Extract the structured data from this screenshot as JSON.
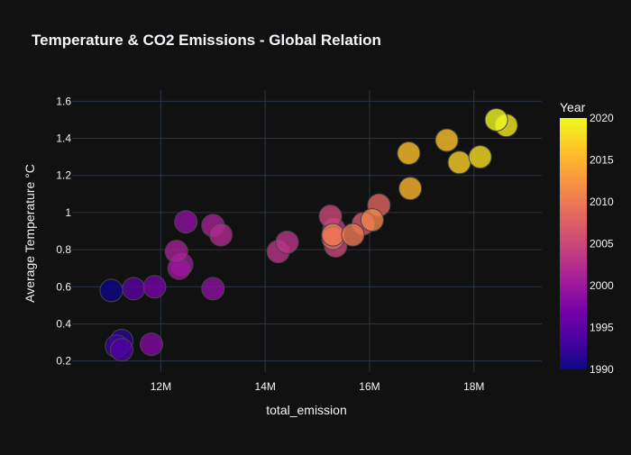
{
  "colors": {
    "background": "#111111",
    "grid": "#283442",
    "text": "#f2f5fa",
    "marker_outline": "#444444",
    "colorscale": [
      "#0d0887",
      "#46039f",
      "#7201a8",
      "#9c179e",
      "#bd3786",
      "#d8576b",
      "#ed7953",
      "#fb9f3a",
      "#fdca26",
      "#f0f921"
    ]
  },
  "chart_data": {
    "type": "scatter",
    "title": "Temperature & CO2 Emissions - Global Relation",
    "xlabel": "total_emission",
    "ylabel": "Average Temperature °C",
    "xlim": [
      10300000,
      19300000
    ],
    "ylim": [
      0.14,
      1.66
    ],
    "grid": true,
    "x_ticks": [
      12000000,
      14000000,
      16000000,
      18000000
    ],
    "x_tick_labels": [
      "12M",
      "14M",
      "16M",
      "18M"
    ],
    "y_ticks": [
      0.2,
      0.4,
      0.6,
      0.8,
      1.0,
      1.2,
      1.4,
      1.6
    ],
    "y_tick_labels": [
      "0.2",
      "0.4",
      "0.6",
      "0.8",
      "1",
      "1.2",
      "1.4",
      "1.6"
    ],
    "colorbar": {
      "title": "Year",
      "range": [
        1990,
        2020
      ],
      "ticks": [
        1990,
        1995,
        2000,
        2005,
        2010,
        2015,
        2020
      ],
      "tick_labels": [
        "1990",
        "1995",
        "2000",
        "2005",
        "2010",
        "2015",
        "2020"
      ]
    },
    "points": [
      {
        "x": 11050000,
        "y": 0.58,
        "year": 1990
      },
      {
        "x": 11250000,
        "y": 0.31,
        "year": 1992
      },
      {
        "x": 11150000,
        "y": 0.28,
        "year": 1993
      },
      {
        "x": 11250000,
        "y": 0.26,
        "year": 1994
      },
      {
        "x": 11480000,
        "y": 0.59,
        "year": 1995
      },
      {
        "x": 11880000,
        "y": 0.6,
        "year": 1997
      },
      {
        "x": 11820000,
        "y": 0.29,
        "year": 1998
      },
      {
        "x": 12480000,
        "y": 0.95,
        "year": 1999
      },
      {
        "x": 12400000,
        "y": 0.72,
        "year": 2000
      },
      {
        "x": 12350000,
        "y": 0.7,
        "year": 2000
      },
      {
        "x": 13000000,
        "y": 0.59,
        "year": 1999
      },
      {
        "x": 12300000,
        "y": 0.79,
        "year": 2001
      },
      {
        "x": 13000000,
        "y": 0.93,
        "year": 2001
      },
      {
        "x": 13150000,
        "y": 0.88,
        "year": 2002
      },
      {
        "x": 14250000,
        "y": 0.79,
        "year": 2003
      },
      {
        "x": 14420000,
        "y": 0.84,
        "year": 2003
      },
      {
        "x": 15320000,
        "y": 0.91,
        "year": 2004
      },
      {
        "x": 15250000,
        "y": 0.98,
        "year": 2005
      },
      {
        "x": 15350000,
        "y": 0.82,
        "year": 2005
      },
      {
        "x": 15880000,
        "y": 0.94,
        "year": 2007
      },
      {
        "x": 15300000,
        "y": 0.86,
        "year": 2008
      },
      {
        "x": 16180000,
        "y": 1.04,
        "year": 2008
      },
      {
        "x": 15300000,
        "y": 0.88,
        "year": 2010
      },
      {
        "x": 15680000,
        "y": 0.88,
        "year": 2010
      },
      {
        "x": 16050000,
        "y": 0.96,
        "year": 2011
      },
      {
        "x": 16750000,
        "y": 1.32,
        "year": 2016
      },
      {
        "x": 16780000,
        "y": 1.13,
        "year": 2015
      },
      {
        "x": 17480000,
        "y": 1.39,
        "year": 2016
      },
      {
        "x": 17720000,
        "y": 1.27,
        "year": 2017
      },
      {
        "x": 18120000,
        "y": 1.3,
        "year": 2018
      },
      {
        "x": 18620000,
        "y": 1.47,
        "year": 2019
      },
      {
        "x": 18430000,
        "y": 1.5,
        "year": 2020
      }
    ]
  }
}
